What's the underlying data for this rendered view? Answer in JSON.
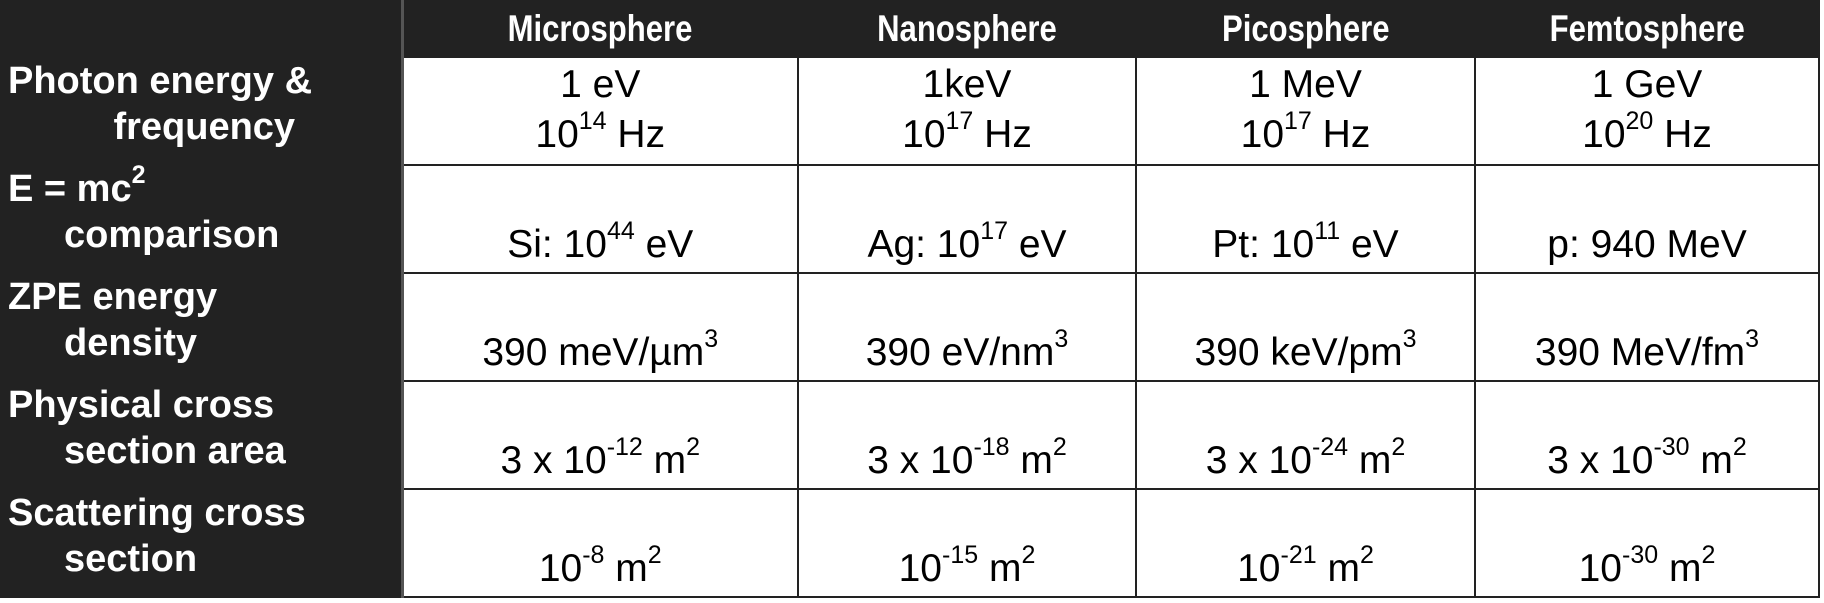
{
  "table": {
    "headers": [
      "Microsphere",
      "Nanosphere",
      "Picosphere",
      "Femtosphere"
    ],
    "rows": [
      {
        "label": [
          "Photon energy &",
          "frequency"
        ],
        "cells": [
          [
            [
              "1 eV"
            ],
            [
              "10",
              {
                "sup": "14"
              },
              " Hz"
            ]
          ],
          [
            [
              "1keV"
            ],
            [
              "10",
              {
                "sup": "17"
              },
              " Hz"
            ]
          ],
          [
            [
              "1 MeV"
            ],
            [
              "10",
              {
                "sup": "17"
              },
              " Hz"
            ]
          ],
          [
            [
              "1 GeV"
            ],
            [
              "10",
              {
                "sup": "20"
              },
              " Hz"
            ]
          ]
        ]
      },
      {
        "label": [
          [
            "E = mc",
            {
              "sup": "2"
            }
          ],
          [
            "comparison"
          ]
        ],
        "cells": [
          [
            [
              "Si: 10",
              {
                "sup": "44"
              },
              " eV"
            ]
          ],
          [
            [
              "Ag: 10",
              {
                "sup": "17"
              },
              " eV"
            ]
          ],
          [
            [
              "Pt: 10",
              {
                "sup": "11"
              },
              " eV"
            ]
          ],
          [
            [
              "p: 940 MeV"
            ]
          ]
        ]
      },
      {
        "label": [
          "ZPE energy",
          "density"
        ],
        "cells": [
          [
            [
              "390 meV/µm",
              {
                "sup": "3"
              }
            ]
          ],
          [
            [
              "390 eV/nm",
              {
                "sup": "3"
              }
            ]
          ],
          [
            [
              "390 keV/pm",
              {
                "sup": "3"
              }
            ]
          ],
          [
            [
              "390 MeV/fm",
              {
                "sup": "3"
              }
            ]
          ]
        ]
      },
      {
        "label": [
          "Physical cross",
          "section area"
        ],
        "cells": [
          [
            [
              "3 x 10",
              {
                "sup": "-12"
              },
              " m",
              {
                "sup": "2"
              }
            ]
          ],
          [
            [
              "3 x 10",
              {
                "sup": "-18"
              },
              " m",
              {
                "sup": "2"
              }
            ]
          ],
          [
            [
              "3 x 10",
              {
                "sup": "-24"
              },
              " m",
              {
                "sup": "2"
              }
            ]
          ],
          [
            [
              "3 x 10",
              {
                "sup": "-30"
              },
              " m",
              {
                "sup": "2"
              }
            ]
          ]
        ]
      },
      {
        "label": [
          "Scattering cross",
          "section"
        ],
        "cells": [
          [
            [
              "10",
              {
                "sup": "-8"
              },
              " m",
              {
                "sup": "2"
              }
            ]
          ],
          [
            [
              "10",
              {
                "sup": "-15"
              },
              " m",
              {
                "sup": "2"
              }
            ]
          ],
          [
            [
              "10",
              {
                "sup": "-21"
              },
              " m",
              {
                "sup": "2"
              }
            ]
          ],
          [
            [
              "10",
              {
                "sup": "-30"
              },
              " m",
              {
                "sup": "2"
              }
            ]
          ]
        ]
      }
    ]
  }
}
